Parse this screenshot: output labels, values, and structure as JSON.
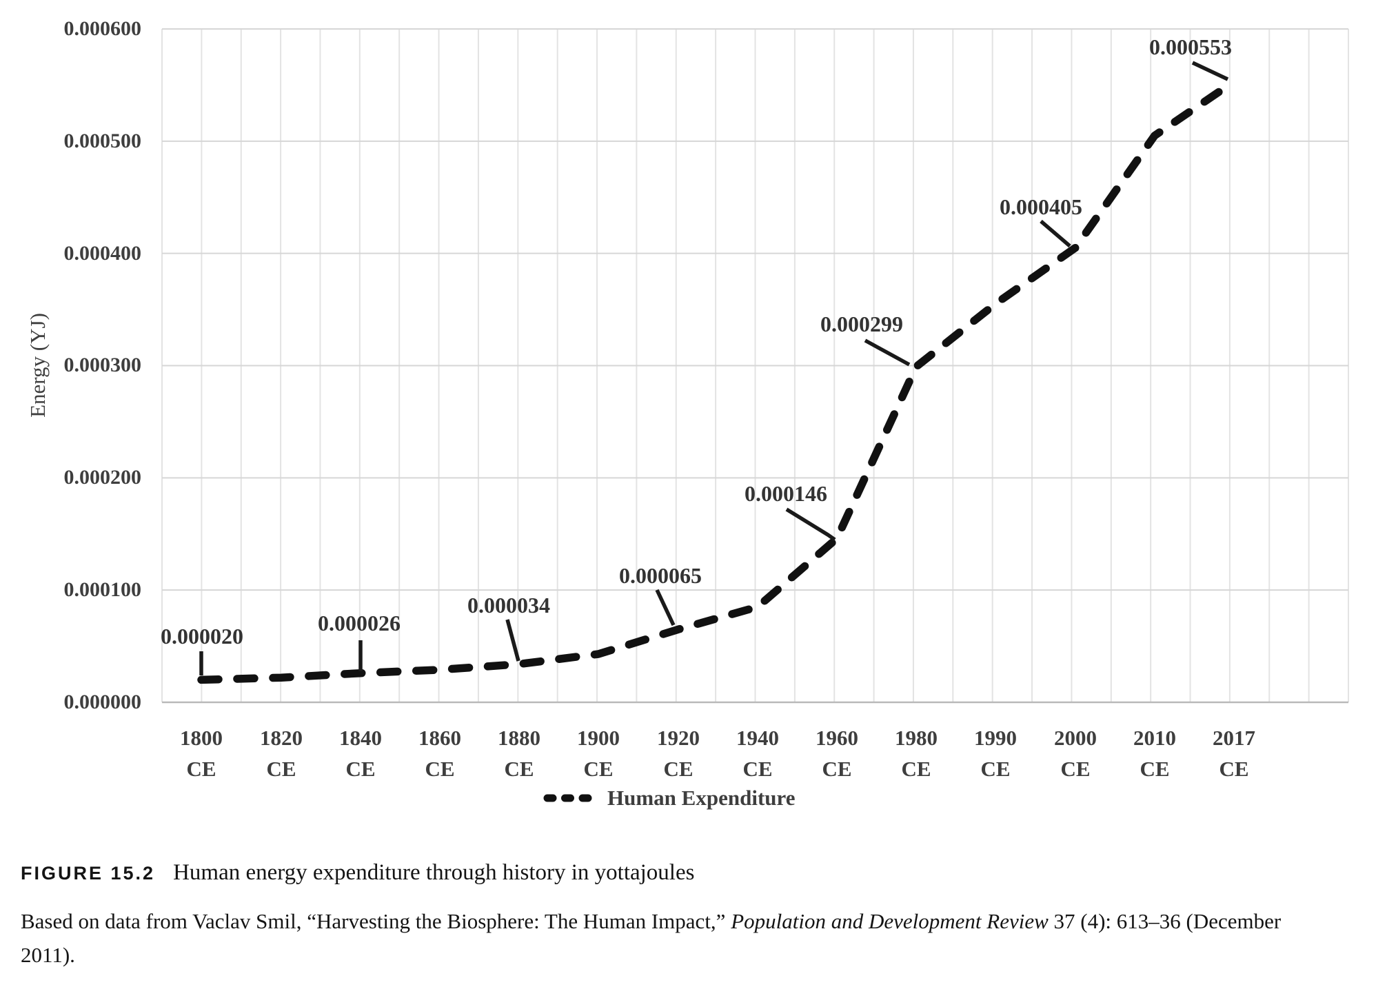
{
  "figure": {
    "label": "FIGURE 15.2",
    "title": "Human energy expenditure through history in yottajoules",
    "source_part1": "Based on data from Vaclav Smil, “Harvesting the Biosphere: The Human Impact,” ",
    "source_journal": "Population and Development Review",
    "source_part3": " 37 (4): 613–36 (December",
    "source_line2": "2011)."
  },
  "chart_data": {
    "type": "line",
    "title": "",
    "xlabel": "",
    "ylabel": "Energy (YJ)",
    "categories": [
      "1800 CE",
      "1820 CE",
      "1840 CE",
      "1860 CE",
      "1880 CE",
      "1900 CE",
      "1920 CE",
      "1940 CE",
      "1960 CE",
      "1980 CE",
      "1990 CE",
      "2000 CE",
      "2010 CE",
      "2017 CE"
    ],
    "xticks": [
      {
        "year": "1800",
        "era": "CE"
      },
      {
        "year": "1820",
        "era": "CE"
      },
      {
        "year": "1840",
        "era": "CE"
      },
      {
        "year": "1860",
        "era": "CE"
      },
      {
        "year": "1880",
        "era": "CE"
      },
      {
        "year": "1900",
        "era": "CE"
      },
      {
        "year": "1920",
        "era": "CE"
      },
      {
        "year": "1940",
        "era": "CE"
      },
      {
        "year": "1960",
        "era": "CE"
      },
      {
        "year": "1980",
        "era": "CE"
      },
      {
        "year": "1990",
        "era": "CE"
      },
      {
        "year": "2000",
        "era": "CE"
      },
      {
        "year": "2010",
        "era": "CE"
      },
      {
        "year": "2017",
        "era": "CE"
      }
    ],
    "series": [
      {
        "name": "Human Expenditure",
        "line_style": "dashed",
        "values_YJ": [
          2e-05,
          2.2e-05,
          2.6e-05,
          2.9e-05,
          3.4e-05,
          4.3e-05,
          6.5e-05,
          8.5e-05,
          0.000146,
          0.000299,
          0.000355,
          0.000405,
          0.000505,
          0.000553
        ]
      }
    ],
    "point_labels": [
      {
        "category": "1800 CE",
        "text": "0.000020"
      },
      {
        "category": "1840 CE",
        "text": "0.000026"
      },
      {
        "category": "1880 CE",
        "text": "0.000034"
      },
      {
        "category": "1920 CE",
        "text": "0.000065"
      },
      {
        "category": "1960 CE",
        "text": "0.000146"
      },
      {
        "category": "1980 CE",
        "text": "0.000299"
      },
      {
        "category": "2000 CE",
        "text": "0.000405"
      },
      {
        "category": "2017 CE",
        "text": "0.000553"
      }
    ],
    "ylim": [
      0,
      0.0006
    ],
    "yticks": [
      "0.000000",
      "0.000100",
      "0.000200",
      "0.000300",
      "0.000400",
      "0.000500",
      "0.000600"
    ],
    "grid": {
      "horizontal": "major",
      "vertical": "minor"
    },
    "legend": {
      "position": "bottom-center",
      "entries": [
        "Human Expenditure"
      ]
    }
  },
  "colors": {
    "line": "#111111",
    "leader": "#1a1a1a",
    "grid_vertical": "#e3e3e3",
    "grid_horizontal": "#d6d6d6",
    "axis_line": "#b9b9b9",
    "axis_text": "#3e3e3e",
    "caption_text": "#141414"
  }
}
